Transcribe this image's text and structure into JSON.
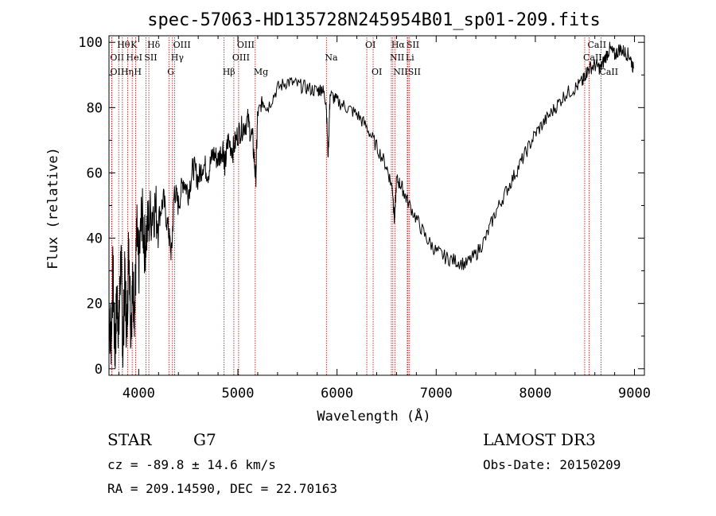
{
  "chart_data": {
    "type": "line",
    "title": "spec-57063-HD135728N245954B01_sp01-209.fits",
    "xlabel": "Wavelength (Å)",
    "ylabel": "Flux (relative)",
    "xlim": [
      3700,
      9100
    ],
    "ylim": [
      -2,
      102
    ],
    "xticks": [
      4000,
      5000,
      6000,
      7000,
      8000,
      9000
    ],
    "xtick_labels": [
      "4000",
      "5000",
      "6000",
      "7000",
      "8000",
      "9000"
    ],
    "yticks": [
      0,
      20,
      40,
      60,
      80,
      100
    ],
    "ytick_labels": [
      "0",
      "20",
      "40",
      "60",
      "80",
      "100"
    ],
    "grid": false,
    "line_color": "#000000",
    "marker_color": "#cc0000",
    "series": [
      {
        "x": [
          3700,
          3720,
          3740,
          3760,
          3780,
          3800,
          3820,
          3840,
          3860,
          3880,
          3900,
          3920,
          3940,
          3960,
          3980,
          4000,
          4030,
          4060,
          4100,
          4150,
          4200,
          4250,
          4300,
          4330,
          4360,
          4400,
          4450,
          4500,
          4550,
          4600,
          4650,
          4700,
          4750,
          4800,
          4850,
          4870,
          4900,
          4950,
          5000,
          5050,
          5100,
          5150,
          5180,
          5200,
          5250,
          5300,
          5400,
          5500,
          5600,
          5700,
          5800,
          5850,
          5890,
          5910,
          5930,
          6000,
          6100,
          6200,
          6300,
          6400,
          6500,
          6560,
          6580,
          6600,
          6650,
          6700,
          6800,
          6900,
          7000,
          7100,
          7200,
          7300,
          7400,
          7500,
          7600,
          7700,
          7800,
          7900,
          8000,
          8100,
          8200,
          8300,
          8400,
          8480,
          8500,
          8540,
          8600,
          8660,
          8700,
          8750,
          8800,
          8850,
          8900,
          8950,
          8990
        ],
        "y": [
          18,
          8,
          30,
          4,
          22,
          12,
          35,
          6,
          28,
          10,
          40,
          14,
          25,
          18,
          42,
          30,
          48,
          38,
          45,
          50,
          46,
          52,
          42,
          35,
          55,
          50,
          58,
          54,
          62,
          58,
          63,
          60,
          66,
          64,
          68,
          62,
          70,
          67,
          72,
          74,
          76,
          70,
          58,
          78,
          82,
          80,
          86,
          88,
          87,
          86,
          85,
          86,
          82,
          65,
          84,
          82,
          80,
          78,
          74,
          68,
          62,
          55,
          45,
          58,
          56,
          52,
          46,
          40,
          36,
          34,
          33,
          32,
          35,
          40,
          48,
          54,
          60,
          66,
          72,
          76,
          80,
          84,
          86,
          88,
          90,
          92,
          93,
          92,
          95,
          98,
          96,
          98,
          97,
          96,
          92
        ]
      }
    ],
    "lines": [
      {
        "label": "OII",
        "x": 3727,
        "row": 1
      },
      {
        "label": "Hθ",
        "x": 3798,
        "row": 0
      },
      {
        "label": "OII",
        "x": 3728,
        "row": 2
      },
      {
        "label": "Hη",
        "x": 3835,
        "row": 2
      },
      {
        "label": "HeI",
        "x": 3889,
        "row": 1
      },
      {
        "label": "K",
        "x": 3934,
        "row": 0
      },
      {
        "label": "H",
        "x": 3968,
        "row": 2
      },
      {
        "label": "SII",
        "x": 4072,
        "row": 1
      },
      {
        "label": "Hδ",
        "x": 4102,
        "row": 0
      },
      {
        "label": "G",
        "x": 4304,
        "row": 2
      },
      {
        "label": "OIII",
        "x": 4363,
        "row": 0
      },
      {
        "label": "Hγ",
        "x": 4340,
        "row": 1
      },
      {
        "label": "Hβ",
        "x": 4861,
        "row": 2
      },
      {
        "label": "OIII",
        "x": 5007,
        "row": 0
      },
      {
        "label": "OIII",
        "x": 4959,
        "row": 1
      },
      {
        "label": "Mg",
        "x": 5175,
        "row": 2
      },
      {
        "label": "Na",
        "x": 5893,
        "row": 1
      },
      {
        "label": "OI",
        "x": 6300,
        "row": 0
      },
      {
        "label": "OI",
        "x": 6364,
        "row": 2
      },
      {
        "label": "Hα",
        "x": 6563,
        "row": 0
      },
      {
        "label": "SII",
        "x": 6716,
        "row": 0
      },
      {
        "label": "NII",
        "x": 6548,
        "row": 1
      },
      {
        "label": "Li",
        "x": 6708,
        "row": 1
      },
      {
        "label": "NII",
        "x": 6583,
        "row": 2
      },
      {
        "label": "SII",
        "x": 6731,
        "row": 2
      },
      {
        "label": "CaII",
        "x": 8542,
        "row": 0
      },
      {
        "label": "CaII",
        "x": 8498,
        "row": 1
      },
      {
        "label": "CaII",
        "x": 8662,
        "row": 2
      }
    ]
  },
  "info": {
    "class_label": "STAR",
    "subclass": "G7",
    "survey": "LAMOST DR3",
    "cz": "cz = -89.8 ± 14.6 km/s",
    "obs_date": "Obs-Date: 20150209",
    "coords": "RA = 209.14590, DEC =  22.70163"
  }
}
